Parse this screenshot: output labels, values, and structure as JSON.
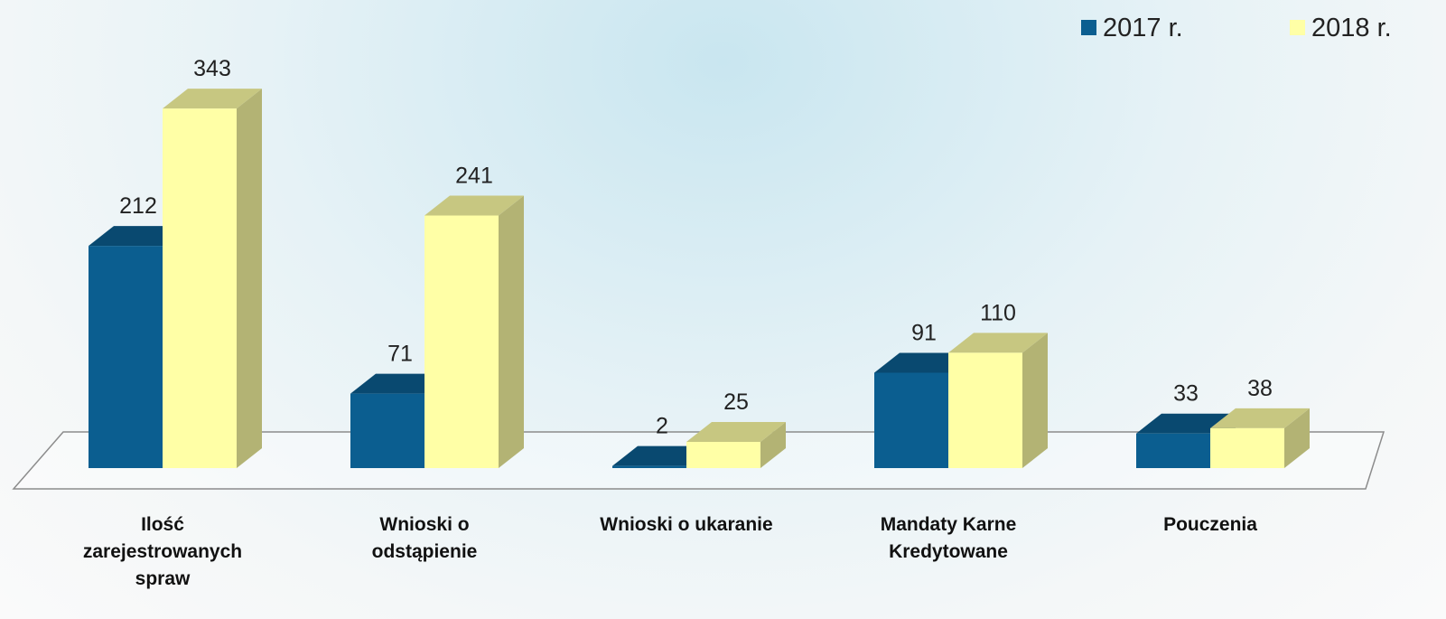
{
  "chart_data": {
    "type": "bar3d",
    "categories": [
      "Ilość zarejestrowanych spraw",
      "Wnioski o odstąpienie",
      "Wnioski o ukaranie",
      "Mandaty Karne Kredytowane",
      "Pouczenia"
    ],
    "series": [
      {
        "name": "2017 r.",
        "color": "#0b5e90",
        "values": [
          212,
          71,
          2,
          91,
          33
        ]
      },
      {
        "name": "2018 r.",
        "color": "#ffffa6",
        "values": [
          343,
          241,
          25,
          110,
          38
        ]
      }
    ]
  }
}
